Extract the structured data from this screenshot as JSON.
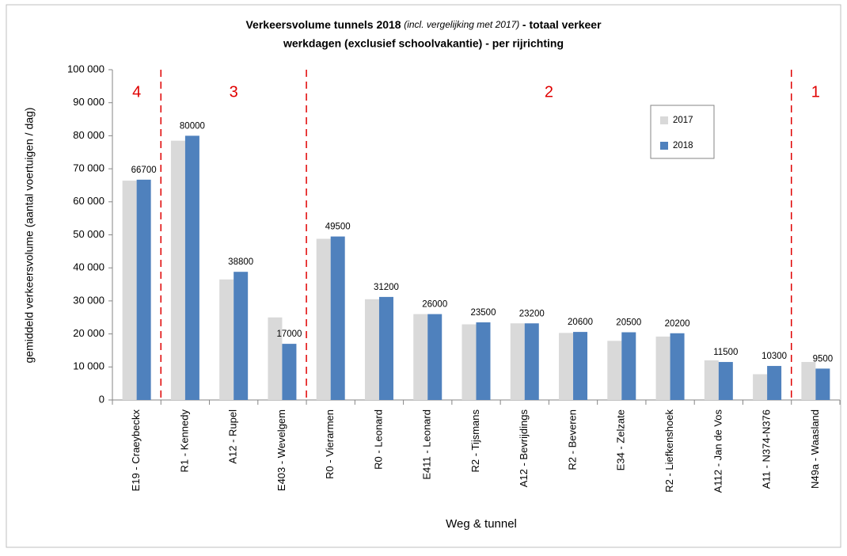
{
  "chart_data": {
    "type": "bar",
    "title": {
      "bold1": "Verkeersvolume tunnels 2018",
      "italic": "(incl. vergelijking met 2017)",
      "bold2": "- totaal verkeer",
      "line2": "werkdagen (exclusief schoolvakantie) - per rijrichting"
    },
    "x_label": "Weg & tunnel",
    "y_label": "gemiddeld verkeersvolume  (aantal voertuigen / dag)",
    "categories": [
      "E19 - Craeybeckx",
      "R1 - Kennedy",
      "A12 - Rupel",
      "E403 - Wevelgem",
      "R0 - Vierarmen",
      "R0 - Leonard",
      "E411 - Leonard",
      "R2 - Tijsmans",
      "A12 - Bevrijdings",
      "R2 - Beveren",
      "E34 - Zelzate",
      "R2 - Liefkenshoek",
      "A112 - Jan de Vos",
      "A11 - N374-N376",
      "N49a - Waasland"
    ],
    "series": [
      {
        "name": "2017",
        "color": "#d9d9d9",
        "values": [
          66400,
          78500,
          36500,
          25000,
          48800,
          30500,
          26000,
          22900,
          23200,
          20300,
          17900,
          19200,
          12000,
          7800,
          11500
        ]
      },
      {
        "name": "2018",
        "color": "#4f81bd",
        "values": [
          66700,
          80000,
          38800,
          17000,
          49500,
          31200,
          26000,
          23500,
          23200,
          20600,
          20500,
          20200,
          11500,
          10300,
          9500
        ],
        "data_labels": true
      }
    ],
    "ylim": [
      0,
      100000
    ],
    "yticks": [
      0,
      {
        "value": 10000,
        "label": "10 000"
      },
      {
        "value": 20000,
        "label": "20 000"
      },
      {
        "value": 30000,
        "label": "30 000"
      },
      {
        "value": 40000,
        "label": "40 000"
      },
      {
        "value": 50000,
        "label": "50 000"
      },
      {
        "value": 60000,
        "label": "60 000"
      },
      {
        "value": 70000,
        "label": "70 000"
      },
      {
        "value": 80000,
        "label": "80 000"
      },
      {
        "value": 90000,
        "label": "90 000"
      },
      {
        "value": 100000,
        "label": "100 000"
      }
    ],
    "zones": [
      "4",
      "3",
      "2",
      "1"
    ],
    "zone_color": "#e00000",
    "legend": "top-right"
  }
}
